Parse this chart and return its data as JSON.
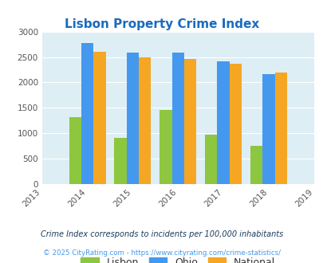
{
  "title": "Lisbon Property Crime Index",
  "years": [
    2014,
    2015,
    2016,
    2017,
    2018
  ],
  "x_ticks": [
    2013,
    2014,
    2015,
    2016,
    2017,
    2018,
    2019
  ],
  "lisbon": [
    1310,
    910,
    1460,
    970,
    760
  ],
  "ohio": [
    2780,
    2580,
    2590,
    2420,
    2160
  ],
  "national": [
    2600,
    2500,
    2460,
    2360,
    2190
  ],
  "colors": {
    "lisbon": "#8dc63f",
    "ohio": "#4499ee",
    "national": "#f5a623"
  },
  "ylim": [
    0,
    3000
  ],
  "yticks": [
    0,
    500,
    1000,
    1500,
    2000,
    2500,
    3000
  ],
  "background_color": "#deeef5",
  "title_color": "#1a6bbf",
  "title_fontsize": 11,
  "bar_width": 0.27,
  "legend_labels": [
    "Lisbon",
    "Ohio",
    "National"
  ],
  "footnote1": "Crime Index corresponds to incidents per 100,000 inhabitants",
  "footnote2": "© 2025 CityRating.com - https://www.cityrating.com/crime-statistics/",
  "footnote1_color": "#1a3a5c",
  "footnote2_color": "#4499ee"
}
